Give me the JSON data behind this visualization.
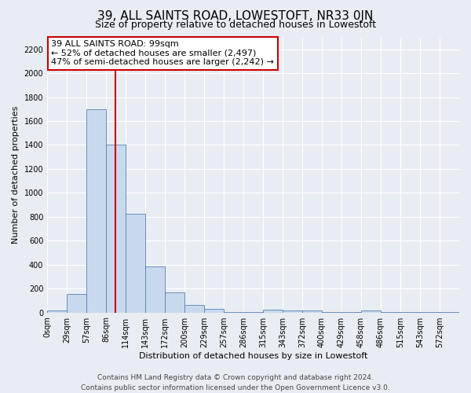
{
  "title": "39, ALL SAINTS ROAD, LOWESTOFT, NR33 0JN",
  "subtitle": "Size of property relative to detached houses in Lowestoft",
  "xlabel": "Distribution of detached houses by size in Lowestoft",
  "ylabel": "Number of detached properties",
  "bin_labels": [
    "0sqm",
    "29sqm",
    "57sqm",
    "86sqm",
    "114sqm",
    "143sqm",
    "172sqm",
    "200sqm",
    "229sqm",
    "257sqm",
    "286sqm",
    "315sqm",
    "343sqm",
    "372sqm",
    "400sqm",
    "429sqm",
    "458sqm",
    "486sqm",
    "515sqm",
    "543sqm",
    "572sqm"
  ],
  "bar_heights": [
    15,
    155,
    1700,
    1400,
    825,
    385,
    165,
    65,
    30,
    5,
    5,
    25,
    20,
    20,
    5,
    5,
    20,
    5,
    5,
    5,
    5
  ],
  "bar_color": "#c9d9ed",
  "bar_edge_color": "#5580b0",
  "ylim": [
    0,
    2300
  ],
  "yticks": [
    0,
    200,
    400,
    600,
    800,
    1000,
    1200,
    1400,
    1600,
    1800,
    2000,
    2200
  ],
  "vline_x": 99,
  "vline_color": "#cc0000",
  "annotation_line1": "39 ALL SAINTS ROAD: 99sqm",
  "annotation_line2": "← 52% of detached houses are smaller (2,497)",
  "annotation_line3": "47% of semi-detached houses are larger (2,242) →",
  "bin_width": 28.57,
  "footer_line1": "Contains HM Land Registry data © Crown copyright and database right 2024.",
  "footer_line2": "Contains public sector information licensed under the Open Government Licence v3.0.",
  "background_color": "#e8edf4",
  "grid_color": "#ffffff",
  "title_fontsize": 11,
  "subtitle_fontsize": 9,
  "axis_label_fontsize": 8,
  "tick_fontsize": 7,
  "annotation_fontsize": 8,
  "footer_fontsize": 6.5
}
